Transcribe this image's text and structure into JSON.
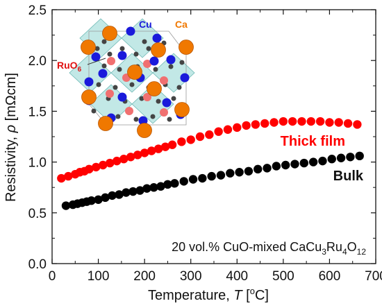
{
  "chart_data": {
    "type": "scatter",
    "xlabel": {
      "base": "Temperature, ",
      "var": "T",
      "unit_open": " [",
      "unit_sup": "o",
      "unit_close": "C]"
    },
    "ylabel": {
      "base": "Resistivity, ",
      "var": "ρ",
      "unit": " [mΩcm]"
    },
    "xlim": [
      0,
      700
    ],
    "ylim": [
      0.0,
      2.5
    ],
    "xticks": [
      "0",
      "100",
      "200",
      "300",
      "400",
      "500",
      "600",
      "700"
    ],
    "yticks": [
      "0.0",
      "0.5",
      "1.0",
      "1.5",
      "2.0",
      "2.5"
    ],
    "grid": false,
    "series": [
      {
        "name": "Thick film",
        "color": "#ff0000",
        "x": [
          20,
          35,
          50,
          60,
          70,
          80,
          95,
          110,
          125,
          140,
          155,
          170,
          185,
          200,
          215,
          230,
          245,
          260,
          280,
          300,
          320,
          340,
          360,
          380,
          400,
          420,
          440,
          460,
          480,
          500,
          520,
          540,
          560,
          580,
          600,
          620,
          640,
          660
        ],
        "y": [
          0.84,
          0.86,
          0.88,
          0.9,
          0.91,
          0.93,
          0.95,
          0.97,
          0.99,
          1.01,
          1.03,
          1.05,
          1.07,
          1.09,
          1.11,
          1.13,
          1.15,
          1.17,
          1.2,
          1.22,
          1.25,
          1.27,
          1.3,
          1.32,
          1.34,
          1.36,
          1.37,
          1.38,
          1.39,
          1.4,
          1.4,
          1.4,
          1.4,
          1.4,
          1.39,
          1.39,
          1.38,
          1.37
        ]
      },
      {
        "name": "Bulk",
        "color": "#000000",
        "x": [
          30,
          45,
          55,
          65,
          75,
          85,
          100,
          115,
          130,
          145,
          160,
          175,
          190,
          205,
          220,
          235,
          250,
          265,
          285,
          305,
          325,
          345,
          365,
          385,
          405,
          425,
          445,
          465,
          485,
          505,
          525,
          545,
          565,
          585,
          605,
          625,
          645,
          665
        ],
        "y": [
          0.57,
          0.58,
          0.59,
          0.6,
          0.61,
          0.62,
          0.63,
          0.65,
          0.67,
          0.68,
          0.7,
          0.71,
          0.72,
          0.74,
          0.75,
          0.76,
          0.78,
          0.79,
          0.81,
          0.83,
          0.84,
          0.86,
          0.87,
          0.89,
          0.9,
          0.91,
          0.93,
          0.94,
          0.96,
          0.97,
          0.98,
          0.99,
          1.0,
          1.01,
          1.03,
          1.04,
          1.05,
          1.06
        ]
      }
    ],
    "annotation": {
      "pre": "20 vol.% CuO-mixed CaCu",
      "s1": "3",
      "mid1": "Ru",
      "s2": "4",
      "mid2": "O",
      "s3": "12"
    },
    "inset": {
      "labels": {
        "cu": "Cu",
        "ca": "Ca",
        "ruo6_base": "RuO",
        "ruo6_sub": "6"
      },
      "colors": {
        "cu": "#1a1adb",
        "ca": "#f07800",
        "ruo6": "#e01010",
        "octahedra": "#8fd6d2",
        "oxygen": "#444444"
      }
    }
  }
}
